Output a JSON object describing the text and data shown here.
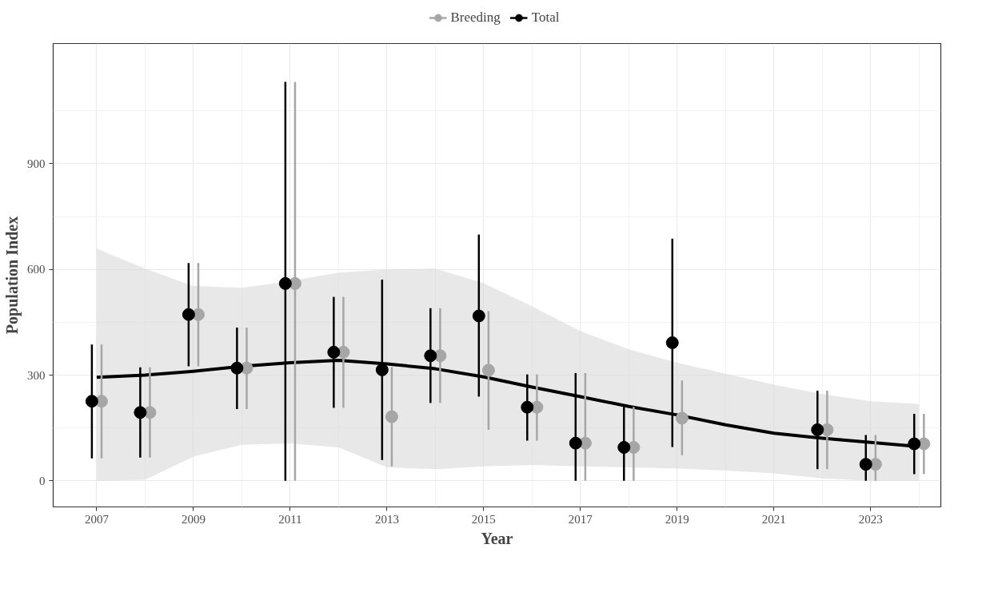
{
  "chart_data": {
    "type": "scatter",
    "xlabel": "Year",
    "ylabel": "Population Index",
    "series": [
      {
        "name": "Breeding",
        "color": "#a6a6a6",
        "marker": "circle",
        "x": [
          2007.1,
          2008.1,
          2009.1,
          2010.1,
          2011.1,
          2012.1,
          2013.1,
          2014.1,
          2015.1,
          2016.1,
          2017.1,
          2018.1,
          2019.1,
          2022.1,
          2023.1,
          2024.1
        ],
        "values": [
          226,
          194,
          472,
          320,
          560,
          365,
          182,
          355,
          314,
          209,
          107,
          95,
          178,
          145,
          47,
          105
        ],
        "errors": [
          [
            64,
            387
          ],
          [
            66,
            322
          ],
          [
            325,
            618
          ],
          [
            204,
            435
          ],
          [
            0,
            1132
          ],
          [
            207,
            522
          ],
          [
            41,
            323
          ],
          [
            221,
            490
          ],
          [
            145,
            482
          ],
          [
            114,
            302
          ],
          [
            0,
            306
          ],
          [
            0,
            210
          ],
          [
            73,
            285
          ],
          [
            33,
            256
          ],
          [
            0,
            130
          ],
          [
            19,
            190
          ]
        ]
      },
      {
        "name": "Total",
        "color": "#000000",
        "marker": "circle",
        "x": [
          2006.9,
          2007.9,
          2008.9,
          2009.9,
          2010.9,
          2011.9,
          2012.9,
          2013.9,
          2014.9,
          2015.9,
          2016.9,
          2017.9,
          2018.9,
          2021.9,
          2022.9,
          2023.9
        ],
        "values": [
          226,
          194,
          472,
          320,
          560,
          365,
          315,
          355,
          468,
          209,
          107,
          95,
          392,
          145,
          47,
          105
        ],
        "errors": [
          [
            64,
            387
          ],
          [
            66,
            322
          ],
          [
            325,
            618
          ],
          [
            204,
            435
          ],
          [
            0,
            1132
          ],
          [
            207,
            522
          ],
          [
            59,
            571
          ],
          [
            221,
            490
          ],
          [
            239,
            699
          ],
          [
            114,
            302
          ],
          [
            0,
            306
          ],
          [
            0,
            210
          ],
          [
            96,
            687
          ],
          [
            33,
            256
          ],
          [
            0,
            130
          ],
          [
            19,
            190
          ]
        ]
      },
      {
        "type": "line",
        "color": "#000000",
        "x": [
          2007,
          2008,
          2009,
          2010,
          2011,
          2012,
          2013,
          2014,
          2015,
          2016,
          2017,
          2018,
          2019,
          2020,
          2021,
          2022,
          2023,
          2024
        ],
        "values": [
          294,
          300,
          311,
          325,
          335,
          342,
          332,
          318,
          295,
          266,
          239,
          211,
          187,
          159,
          135,
          121,
          109,
          97
        ],
        "lower": [
          0,
          3,
          69,
          102,
          106,
          95,
          38,
          33,
          41,
          45,
          41,
          38,
          35,
          29,
          21,
          7,
          0,
          0
        ],
        "upper": [
          659,
          602,
          553,
          548,
          567,
          591,
          600,
          602,
          561,
          495,
          425,
          373,
          335,
          304,
          273,
          246,
          226,
          218
        ]
      }
    ],
    "xlim": [
      2006.1,
      2024.45
    ],
    "ylim": [
      -74,
      1241
    ],
    "xticks": [
      2007,
      2009,
      2011,
      2013,
      2015,
      2017,
      2019,
      2021,
      2023
    ],
    "yticks": [
      0,
      300,
      600,
      900
    ],
    "grid": true,
    "legend": "top"
  }
}
